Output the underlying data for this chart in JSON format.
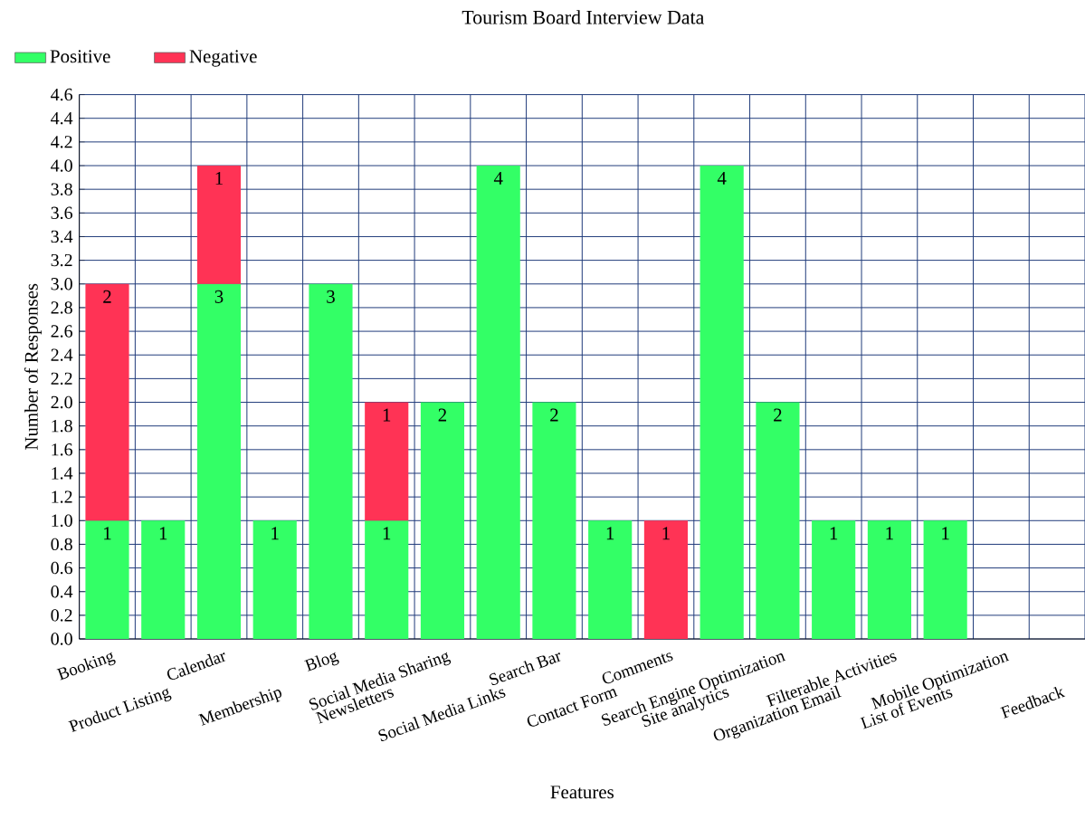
{
  "chart_data": {
    "type": "bar",
    "title": "Tourism Board Interview Data",
    "xlabel": "Features",
    "ylabel": "Number of Responses",
    "categories": [
      "Booking",
      "Product Listing",
      "Calendar",
      "Membership",
      "Blog",
      "Newsletters",
      "Social Media Sharing",
      "Social Media Links",
      "Search Bar",
      "Contact Form",
      "Comments",
      "Site analytics",
      "Search Engine Optimization",
      "Organization Email",
      "Filterable Activities",
      "List of Events",
      "Mobile Optimization",
      "Feedback"
    ],
    "series": [
      {
        "name": "Positive",
        "color": "#33ff66",
        "values": [
          1,
          1,
          3,
          1,
          3,
          1,
          2,
          4,
          2,
          1,
          null,
          4,
          2,
          1,
          1,
          1,
          null,
          null
        ]
      },
      {
        "name": "Negative",
        "color": "#ff3355",
        "values": [
          2,
          null,
          1,
          null,
          null,
          1,
          null,
          null,
          null,
          null,
          1,
          null,
          null,
          null,
          null,
          null,
          null,
          null
        ]
      }
    ],
    "stacked": true,
    "data_labels": true,
    "grid": true,
    "legend": "top left",
    "ylim": [
      0,
      4.6
    ],
    "yticks": [
      {
        "value": 0,
        "label": "0.0"
      },
      0.2,
      0.4,
      0.6,
      0.8,
      {
        "value": 1,
        "label": "1.0"
      },
      1.2,
      1.4,
      1.6,
      1.8,
      {
        "value": 2,
        "label": "2.0"
      },
      2.2,
      2.4,
      2.6,
      2.8,
      {
        "value": 3,
        "label": "3.0"
      },
      3.2,
      3.4,
      3.6,
      3.8,
      {
        "value": 4,
        "label": "4.0"
      },
      4.2,
      4.4,
      4.6
    ]
  }
}
